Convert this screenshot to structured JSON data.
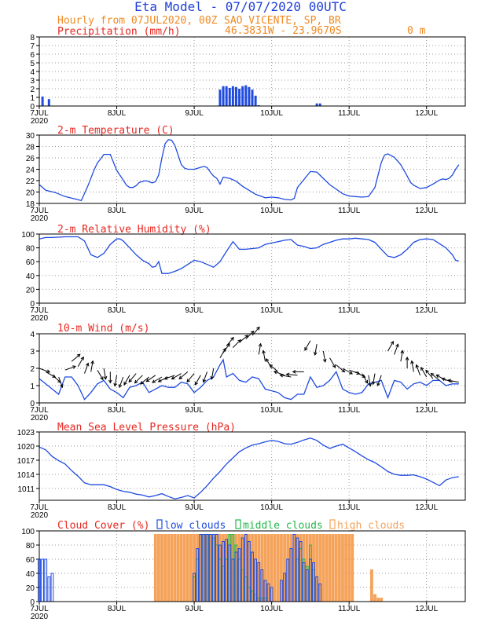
{
  "header": {
    "title": "Eta Model - 07/07/2020 00UTC",
    "subtitle": "Hourly from 07JUL2020, 00Z",
    "station": "SAO_VICENTE, SP, BR",
    "coords": "46.3831W - 23.9670S",
    "elevation": "0  m"
  },
  "colors": {
    "title": "#1f3fd6",
    "subtitle": "#f08a24",
    "panel_title": "#e8261f",
    "series": "#1f4be0",
    "vector": "#000000",
    "low": "#1f4be0",
    "middle": "#22b84a",
    "high": "#f5a35a",
    "grid": "#999999"
  },
  "x_ticks": [
    "7JUL",
    "8JUL",
    "9JUL",
    "10JUL",
    "11JUL",
    "12JUL"
  ],
  "year_label": "2020",
  "chart_data": [
    {
      "type": "bar",
      "id": "precip",
      "title": "Precipitation (mm/h)",
      "ylim": [
        0,
        8
      ],
      "yticks": [
        0,
        1,
        2,
        3,
        4,
        5,
        6,
        7,
        8
      ],
      "x_unit": "hours since 07JUL2020 00Z",
      "x": [
        1,
        3,
        56,
        57,
        58,
        59,
        60,
        61,
        62,
        63,
        64,
        65,
        66,
        67,
        68,
        86,
        87
      ],
      "values": [
        1.1,
        0.8,
        1.9,
        2.3,
        2.3,
        2.1,
        2.3,
        2.2,
        2.0,
        2.3,
        2.4,
        2.2,
        1.9,
        1.2,
        0.1,
        0.3,
        0.3
      ]
    },
    {
      "type": "line",
      "id": "temp",
      "title": "2-m Temperature (C)",
      "ylim": [
        18,
        30
      ],
      "yticks": [
        18,
        20,
        22,
        24,
        26,
        28,
        30
      ],
      "x": [
        0,
        2,
        5,
        8,
        11,
        13,
        15,
        17,
        18,
        19,
        20,
        22,
        23,
        24,
        26,
        27,
        28,
        29,
        30,
        31,
        33,
        34,
        35,
        36,
        37,
        38,
        39,
        40,
        41,
        42,
        44,
        45,
        46,
        47,
        48,
        51,
        52,
        53,
        54,
        55,
        56,
        57,
        59,
        61,
        63,
        65,
        67,
        69,
        70,
        72,
        74,
        76,
        78,
        79,
        80,
        82,
        84,
        86,
        88,
        90,
        92,
        94,
        96,
        98,
        100,
        102,
        104,
        106,
        107,
        108,
        110,
        112,
        114,
        115,
        116,
        118,
        120,
        122,
        124,
        125,
        126,
        127,
        128,
        129,
        130
      ],
      "values": [
        21.3,
        20.3,
        19.9,
        19.2,
        18.8,
        18.5,
        21.0,
        23.9,
        25.1,
        25.8,
        26.6,
        26.6,
        25.2,
        23.8,
        22.1,
        21.2,
        20.8,
        20.8,
        21.1,
        21.7,
        22.0,
        21.8,
        21.6,
        21.8,
        23.0,
        26.0,
        28.5,
        29.2,
        29.1,
        28.2,
        24.8,
        24.2,
        24.0,
        24.0,
        24.0,
        24.5,
        24.3,
        23.5,
        22.8,
        22.4,
        21.4,
        22.6,
        22.4,
        21.9,
        21.0,
        20.3,
        19.6,
        19.2,
        19.0,
        19.1,
        19.0,
        18.7,
        18.6,
        18.9,
        20.8,
        22.2,
        23.6,
        23.5,
        22.4,
        21.3,
        20.5,
        19.7,
        19.3,
        19.2,
        19.1,
        19.2,
        20.8,
        25.2,
        26.5,
        26.7,
        26.1,
        24.8,
        22.8,
        21.7,
        21.2,
        20.6,
        20.8,
        21.4,
        22.1,
        22.3,
        22.2,
        22.4,
        23.0,
        24.0,
        24.8
      ]
    },
    {
      "type": "line",
      "id": "rh",
      "title": "2-m Relative Humidity (%)",
      "ylim": [
        0,
        100
      ],
      "yticks": [
        0,
        20,
        40,
        60,
        80,
        100
      ],
      "x": [
        0,
        2,
        4,
        8,
        12,
        14,
        16,
        18,
        20,
        22,
        24,
        25,
        26,
        28,
        30,
        32,
        34,
        35,
        36,
        37,
        38,
        40,
        42,
        44,
        46,
        48,
        50,
        52,
        54,
        56,
        58,
        60,
        62,
        64,
        66,
        68,
        70,
        72,
        74,
        76,
        78,
        80,
        82,
        84,
        86,
        88,
        90,
        92,
        94,
        96,
        98,
        100,
        102,
        104,
        106,
        108,
        110,
        112,
        114,
        116,
        118,
        120,
        122,
        124,
        126,
        128,
        129,
        130
      ],
      "values": [
        93,
        95,
        95,
        96,
        96,
        90,
        70,
        66,
        72,
        85,
        93,
        93,
        90,
        80,
        70,
        62,
        57,
        52,
        53,
        60,
        43,
        43,
        46,
        50,
        56,
        62,
        60,
        56,
        52,
        60,
        75,
        89,
        78,
        78,
        79,
        80,
        85,
        87,
        89,
        91,
        92,
        84,
        82,
        79,
        80,
        85,
        88,
        91,
        93,
        93,
        94,
        93,
        92,
        88,
        78,
        68,
        66,
        70,
        78,
        88,
        92,
        93,
        92,
        86,
        80,
        70,
        62,
        61
      ]
    },
    {
      "type": "line+vector",
      "id": "wind",
      "title": "10-m Wind (m/s)",
      "ylim": [
        0,
        4
      ],
      "yticks": [
        0,
        1,
        2,
        3,
        4
      ],
      "x": [
        0,
        2,
        4,
        6,
        8,
        10,
        12,
        14,
        16,
        18,
        20,
        22,
        24,
        26,
        28,
        30,
        32,
        34,
        36,
        38,
        40,
        42,
        44,
        46,
        48,
        50,
        52,
        54,
        56,
        57,
        58,
        60,
        62,
        64,
        66,
        68,
        70,
        72,
        74,
        76,
        78,
        80,
        82,
        84,
        86,
        88,
        90,
        92,
        94,
        96,
        98,
        100,
        102,
        104,
        106,
        108,
        110,
        112,
        114,
        116,
        118,
        120,
        122,
        124,
        126,
        128,
        130
      ],
      "values": [
        1.4,
        1.1,
        0.8,
        0.5,
        1.5,
        1.5,
        1.0,
        0.2,
        0.6,
        1.1,
        1.3,
        0.8,
        0.6,
        0.3,
        0.9,
        1.0,
        1.2,
        0.6,
        0.8,
        1.0,
        0.9,
        0.9,
        1.2,
        1.1,
        0.6,
        0.9,
        1.3,
        1.5,
        2.2,
        2.5,
        1.5,
        1.7,
        1.3,
        1.2,
        1.5,
        1.4,
        0.8,
        0.7,
        0.6,
        0.3,
        0.2,
        0.5,
        0.5,
        1.5,
        0.9,
        1.0,
        1.3,
        1.8,
        0.8,
        0.6,
        0.5,
        0.6,
        1.1,
        1.2,
        1.3,
        0.3,
        1.3,
        1.2,
        0.8,
        1.1,
        1.2,
        1.0,
        1.3,
        1.3,
        1.0,
        1.1,
        1.1
      ],
      "vector_angle_deg": [
        -20,
        -30,
        -40,
        -70,
        20,
        40,
        60,
        70,
        80,
        -60,
        -80,
        -90,
        -100,
        -110,
        -120,
        -130,
        -135,
        -140,
        -145,
        -150,
        -155,
        -160,
        -150,
        -140,
        -130,
        -120,
        -110,
        -100,
        60,
        55,
        50,
        45,
        40,
        45,
        50,
        80,
        100,
        120,
        140,
        160,
        170,
        175,
        180,
        -120,
        -100,
        -80,
        -60,
        -40,
        -30,
        -20,
        -30,
        -60,
        -80,
        -100,
        -110,
        60,
        70,
        80,
        90,
        100,
        110,
        120,
        130,
        140,
        150,
        160,
        170
      ],
      "vector_speed": [
        2.0,
        1.8,
        1.6,
        1.5,
        1.9,
        2.4,
        2.1,
        1.7,
        1.8,
        1.9,
        2.0,
        1.8,
        1.6,
        1.5,
        1.6,
        1.7,
        1.6,
        1.5,
        1.6,
        1.5,
        1.5,
        1.6,
        1.7,
        1.8,
        1.7,
        1.6,
        1.8,
        2.0,
        2.6,
        2.9,
        3.3,
        3.2,
        3.5,
        3.7,
        3.9,
        2.8,
        2.4,
        2.0,
        1.8,
        1.6,
        1.5,
        1.6,
        1.8,
        3.6,
        3.4,
        3.0,
        2.6,
        2.2,
        2.0,
        1.9,
        1.8,
        1.7,
        1.6,
        1.7,
        1.6,
        3.0,
        2.8,
        2.4,
        2.0,
        1.8,
        1.6,
        1.5,
        1.4,
        1.3,
        1.3,
        1.2,
        1.2
      ]
    },
    {
      "type": "line",
      "id": "mslp",
      "title": "Mean Sea Level Pressure (hPa)",
      "ylim": [
        1008.5,
        1023
      ],
      "yticks": [
        1011,
        1014,
        1017,
        1020,
        1023
      ],
      "x": [
        0,
        2,
        4,
        6,
        8,
        10,
        12,
        14,
        16,
        18,
        20,
        22,
        24,
        26,
        28,
        30,
        32,
        34,
        36,
        38,
        40,
        42,
        44,
        46,
        48,
        50,
        52,
        54,
        56,
        58,
        60,
        62,
        64,
        66,
        68,
        70,
        72,
        74,
        76,
        78,
        80,
        82,
        84,
        86,
        88,
        90,
        92,
        94,
        96,
        98,
        100,
        102,
        104,
        106,
        108,
        110,
        112,
        114,
        116,
        118,
        120,
        122,
        124,
        126,
        128,
        130
      ],
      "values": [
        1019.8,
        1019.2,
        1017.8,
        1016.9,
        1016.2,
        1014.8,
        1013.6,
        1012.2,
        1011.8,
        1011.8,
        1011.8,
        1011.4,
        1010.8,
        1010.4,
        1010.2,
        1009.8,
        1009.6,
        1009.2,
        1009.5,
        1009.9,
        1009.3,
        1008.8,
        1009.1,
        1009.5,
        1009.0,
        1010.2,
        1011.6,
        1013.2,
        1014.6,
        1016.2,
        1017.5,
        1018.8,
        1019.6,
        1020.2,
        1020.5,
        1020.9,
        1021.2,
        1021.0,
        1020.5,
        1020.4,
        1020.8,
        1021.3,
        1021.7,
        1021.2,
        1020.2,
        1019.5,
        1020.0,
        1020.4,
        1019.6,
        1018.8,
        1017.9,
        1017.1,
        1016.5,
        1015.6,
        1014.6,
        1014.0,
        1013.8,
        1013.8,
        1013.9,
        1013.5,
        1013.0,
        1012.3,
        1011.6,
        1012.8,
        1013.3,
        1013.5
      ]
    },
    {
      "type": "bar",
      "id": "cloud",
      "title": "Cloud Cover (%)",
      "ylim": [
        0,
        100
      ],
      "yticks": [
        0,
        20,
        40,
        60,
        80,
        100
      ],
      "legend": [
        "low clouds",
        "middle clouds",
        "high clouds"
      ],
      "low": {
        "x": [
          0,
          1,
          2,
          3,
          4,
          5,
          6,
          48,
          49,
          50,
          51,
          52,
          53,
          54,
          55,
          56,
          57,
          58,
          59,
          60,
          61,
          62,
          63,
          64,
          65,
          66,
          67,
          68,
          69,
          70,
          71,
          72,
          75,
          76,
          77,
          78,
          79,
          80,
          81,
          82,
          83,
          84,
          85,
          86,
          87
        ],
        "values": [
          60,
          60,
          60,
          35,
          40,
          0,
          0,
          40,
          75,
          95,
          95,
          95,
          95,
          95,
          95,
          80,
          85,
          88,
          80,
          60,
          70,
          75,
          90,
          95,
          85,
          70,
          60,
          55,
          45,
          30,
          25,
          20,
          30,
          40,
          60,
          75,
          95,
          90,
          85,
          55,
          45,
          60,
          55,
          35,
          25
        ]
      },
      "middle": {
        "x": [
          48,
          49,
          50,
          51,
          52,
          53,
          54,
          55,
          56,
          57,
          58,
          59,
          60,
          61,
          62,
          63,
          64,
          65,
          66,
          67,
          68,
          69,
          70,
          80,
          81,
          82,
          83,
          84,
          85
        ],
        "values": [
          35,
          60,
          95,
          95,
          95,
          95,
          90,
          80,
          60,
          50,
          60,
          95,
          95,
          80,
          60,
          45,
          35,
          20,
          15,
          10,
          5,
          5,
          5,
          60,
          75,
          60,
          50,
          80,
          45
        ]
      },
      "high": {
        "x": [
          36,
          37,
          38,
          39,
          40,
          41,
          42,
          43,
          44,
          45,
          46,
          47,
          48,
          49,
          50,
          51,
          52,
          53,
          54,
          55,
          56,
          57,
          58,
          59,
          60,
          61,
          62,
          63,
          64,
          65,
          66,
          67,
          68,
          69,
          70,
          71,
          72,
          73,
          74,
          75,
          76,
          77,
          78,
          79,
          80,
          81,
          82,
          83,
          84,
          85,
          86,
          87,
          88,
          89,
          90,
          91,
          92,
          93,
          94,
          95,
          96,
          97,
          103,
          104,
          105,
          106
        ],
        "values": [
          95,
          95,
          95,
          95,
          95,
          95,
          95,
          95,
          95,
          95,
          95,
          95,
          95,
          95,
          95,
          95,
          95,
          95,
          95,
          95,
          95,
          95,
          95,
          95,
          95,
          95,
          95,
          95,
          95,
          95,
          95,
          95,
          95,
          95,
          95,
          95,
          95,
          95,
          95,
          95,
          95,
          95,
          95,
          95,
          95,
          95,
          95,
          95,
          95,
          95,
          95,
          95,
          95,
          95,
          95,
          95,
          95,
          95,
          95,
          95,
          95,
          95,
          45,
          10,
          5,
          5
        ]
      }
    }
  ]
}
